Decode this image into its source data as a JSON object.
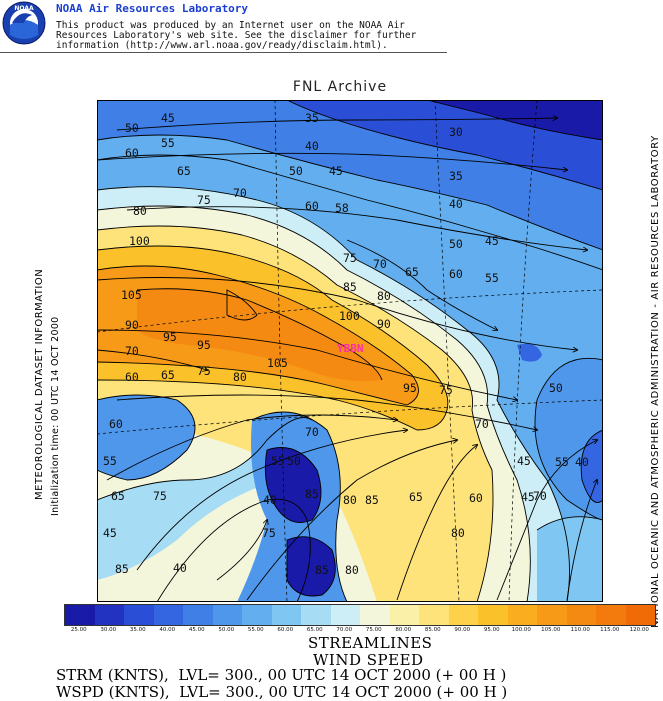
{
  "header": {
    "title": "NOAA Air Resources Laboratory",
    "lines": [
      "This product was produced by an Internet user on the NOAA Air",
      "Resources Laboratory's web site.  See the disclaimer for further",
      "information (http://www.arl.noaa.gov/ready/disclaim.html)."
    ],
    "logo_text": "NOAA"
  },
  "map": {
    "title": "FNL Archive",
    "left_label_1": "METEOROLOGICAL DATASET INFORMATION",
    "left_label_2": "Initialization time: 00 UTC 14 OCT 2000",
    "right_label": "NATIONAL OCEANIC AND ATMOSPHERIC ADMINISTRATION - AIR RESOURCES LABORATORY",
    "station_label": "YBBN",
    "station_color": "#ff2fa8"
  },
  "chart_data": {
    "type": "heatmap",
    "title": "FNL Archive",
    "variable": "WIND SPEED",
    "units": "KNTS",
    "colorbar": {
      "levels": [
        "25.00",
        "30.00",
        "35.00",
        "40.00",
        "45.00",
        "50.00",
        "55.00",
        "60.00",
        "65.00",
        "70.00",
        "75.00",
        "80.00",
        "85.00",
        "90.00",
        "95.00",
        "100.00",
        "105.00",
        "110.00",
        "115.00",
        "120.00"
      ],
      "colors": [
        "#1a1aa8",
        "#2233c2",
        "#2a4fd6",
        "#3366e0",
        "#3f7fe6",
        "#4f97ea",
        "#62aeee",
        "#7fc6f2",
        "#a6dcf4",
        "#cdeef6",
        "#f4f6dc",
        "#fbf0a8",
        "#fde37a",
        "#fdd24a",
        "#fbc12a",
        "#f9ad1f",
        "#f79a18",
        "#f58a12",
        "#f37b0d",
        "#f06b06"
      ]
    },
    "contour_labels": [
      {
        "text": "50",
        "v": 50
      },
      {
        "text": "45",
        "v": 45
      },
      {
        "text": "35",
        "v": 35
      },
      {
        "text": "30",
        "v": 30
      },
      {
        "text": "60",
        "v": 60
      },
      {
        "text": "55",
        "v": 55
      },
      {
        "text": "40",
        "v": 40
      },
      {
        "text": "65",
        "v": 65
      },
      {
        "text": "50",
        "v": 50
      },
      {
        "text": "45",
        "v": 45
      },
      {
        "text": "35",
        "v": 35
      },
      {
        "text": "70",
        "v": 70
      },
      {
        "text": "75",
        "v": 75
      },
      {
        "text": "60",
        "v": 60
      },
      {
        "text": "58",
        "v": 58
      },
      {
        "text": "40",
        "v": 40
      },
      {
        "text": "80",
        "v": 80
      },
      {
        "text": "100",
        "v": 100
      },
      {
        "text": "50",
        "v": 50
      },
      {
        "text": "45",
        "v": 45
      },
      {
        "text": "75",
        "v": 75
      },
      {
        "text": "70",
        "v": 70
      },
      {
        "text": "65",
        "v": 65
      },
      {
        "text": "60",
        "v": 60
      },
      {
        "text": "55",
        "v": 55
      },
      {
        "text": "105",
        "v": 105
      },
      {
        "text": "85",
        "v": 85
      },
      {
        "text": "80",
        "v": 80
      },
      {
        "text": "90",
        "v": 90
      },
      {
        "text": "100",
        "v": 100
      },
      {
        "text": "90",
        "v": 90
      },
      {
        "text": "70",
        "v": 70
      },
      {
        "text": "95",
        "v": 95
      },
      {
        "text": "95",
        "v": 95
      },
      {
        "text": "105",
        "v": 105
      },
      {
        "text": "60",
        "v": 60
      },
      {
        "text": "65",
        "v": 65
      },
      {
        "text": "75",
        "v": 75
      },
      {
        "text": "80",
        "v": 80
      },
      {
        "text": "95",
        "v": 95
      },
      {
        "text": "75",
        "v": 75
      },
      {
        "text": "50",
        "v": 50
      },
      {
        "text": "60",
        "v": 60
      },
      {
        "text": "70",
        "v": 70
      },
      {
        "text": "70",
        "v": 70
      },
      {
        "text": "55",
        "v": 55
      },
      {
        "text": "55",
        "v": 55
      },
      {
        "text": "50",
        "v": 50
      },
      {
        "text": "45",
        "v": 45
      },
      {
        "text": "55",
        "v": 55
      },
      {
        "text": "40",
        "v": 40
      },
      {
        "text": "65",
        "v": 65
      },
      {
        "text": "75",
        "v": 75
      },
      {
        "text": "40",
        "v": 40
      },
      {
        "text": "85",
        "v": 85
      },
      {
        "text": "80",
        "v": 80
      },
      {
        "text": "85",
        "v": 85
      },
      {
        "text": "65",
        "v": 65
      },
      {
        "text": "60",
        "v": 60
      },
      {
        "text": "45",
        "v": 45
      },
      {
        "text": "70",
        "v": 70
      },
      {
        "text": "45",
        "v": 45
      },
      {
        "text": "75",
        "v": 75
      },
      {
        "text": "80",
        "v": 80
      },
      {
        "text": "85",
        "v": 85
      },
      {
        "text": "40",
        "v": 40
      },
      {
        "text": "85",
        "v": 85
      },
      {
        "text": "80",
        "v": 80
      }
    ],
    "overlay": "STREAMLINES",
    "grid": true
  },
  "footer": {
    "line1": "STREAMLINES",
    "line2": "WIND SPEED",
    "line3": "STRM (KNTS),  LVL= 300., 00 UTC 14 OCT 2000 (+ 00 H )",
    "line4": "WSPD (KNTS),  LVL= 300., 00 UTC 14 OCT 2000 (+ 00 H )"
  }
}
